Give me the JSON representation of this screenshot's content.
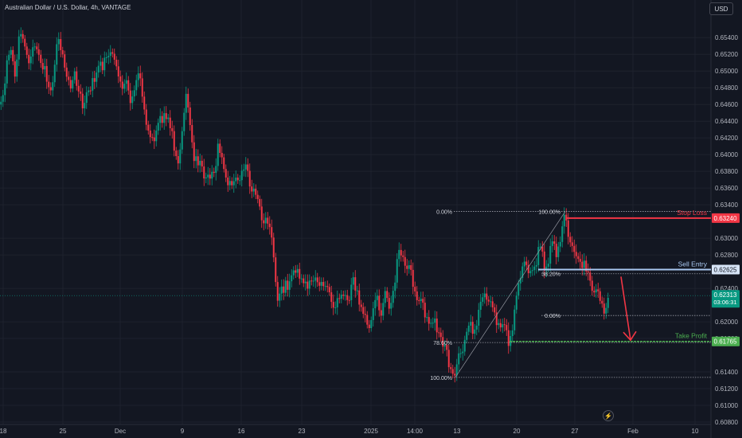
{
  "header": {
    "title": "Australian Dollar / U.S. Dollar, 4h, VANTAGE",
    "currency_button": "USD"
  },
  "colors": {
    "up": "#089981",
    "down": "#f23645",
    "bg": "#131722",
    "grid": "#1e222d",
    "fib": "#9598a1",
    "stop": "#f23645",
    "entry": "#5d9cec",
    "tp": "#4caf50"
  },
  "chart_data": {
    "type": "line",
    "symbol": "AUDUSD",
    "timeframe": "4h",
    "x_tick_labels": [
      "18",
      "25",
      "Dec",
      "9",
      "16",
      "23",
      "2025",
      "14:00",
      "13",
      "20",
      "27",
      "Feb",
      "10"
    ],
    "y_tick_labels": [
      "0.65400",
      "0.65200",
      "0.65000",
      "0.64800",
      "0.64600",
      "0.64400",
      "0.64200",
      "0.64000",
      "0.63800",
      "0.63600",
      "0.63400",
      "0.63000",
      "0.62800",
      "0.62400",
      "0.62000",
      "0.61800",
      "0.61400",
      "0.61200",
      "0.61000",
      "0.60800"
    ],
    "ylim": [
      0.6075,
      0.6565
    ],
    "price_path": [
      [
        0,
        0.646
      ],
      [
        5,
        0.6475
      ],
      [
        10,
        0.651
      ],
      [
        15,
        0.6525
      ],
      [
        20,
        0.65
      ],
      [
        25,
        0.6535
      ],
      [
        30,
        0.654
      ],
      [
        35,
        0.652
      ],
      [
        40,
        0.651
      ],
      [
        45,
        0.653
      ],
      [
        50,
        0.6525
      ],
      [
        55,
        0.65
      ],
      [
        60,
        0.6495
      ],
      [
        65,
        0.648
      ],
      [
        70,
        0.6505
      ],
      [
        75,
        0.6545
      ],
      [
        80,
        0.652
      ],
      [
        85,
        0.649
      ],
      [
        90,
        0.648
      ],
      [
        95,
        0.65
      ],
      [
        100,
        0.647
      ],
      [
        105,
        0.646
      ],
      [
        110,
        0.648
      ],
      [
        115,
        0.6475
      ],
      [
        120,
        0.6495
      ],
      [
        125,
        0.651
      ],
      [
        130,
        0.65
      ],
      [
        135,
        0.652
      ],
      [
        140,
        0.653
      ],
      [
        145,
        0.651
      ],
      [
        150,
        0.65
      ],
      [
        155,
        0.6485
      ],
      [
        160,
        0.648
      ],
      [
        165,
        0.647
      ],
      [
        170,
        0.648
      ],
      [
        175,
        0.649
      ],
      [
        180,
        0.6475
      ],
      [
        185,
        0.644
      ],
      [
        190,
        0.6415
      ],
      [
        195,
        0.6425
      ],
      [
        200,
        0.644
      ],
      [
        205,
        0.6435
      ],
      [
        210,
        0.645
      ],
      [
        215,
        0.644
      ],
      [
        220,
        0.64
      ],
      [
        225,
        0.6395
      ],
      [
        230,
        0.643
      ],
      [
        235,
        0.6465
      ],
      [
        240,
        0.644
      ],
      [
        245,
        0.64
      ],
      [
        250,
        0.638
      ],
      [
        255,
        0.639
      ],
      [
        260,
        0.637
      ],
      [
        265,
        0.6365
      ],
      [
        270,
        0.638
      ],
      [
        275,
        0.641
      ],
      [
        280,
        0.639
      ],
      [
        285,
        0.6375
      ],
      [
        290,
        0.6365
      ],
      [
        295,
        0.636
      ],
      [
        300,
        0.637
      ],
      [
        305,
        0.6375
      ],
      [
        310,
        0.638
      ],
      [
        315,
        0.637
      ],
      [
        320,
        0.6355
      ],
      [
        325,
        0.6345
      ],
      [
        330,
        0.633
      ],
      [
        335,
        0.632
      ],
      [
        340,
        0.6305
      ],
      [
        345,
        0.628
      ],
      [
        350,
        0.622
      ],
      [
        355,
        0.6235
      ],
      [
        360,
        0.625
      ],
      [
        365,
        0.624
      ],
      [
        370,
        0.626
      ],
      [
        375,
        0.6265
      ],
      [
        380,
        0.625
      ],
      [
        385,
        0.624
      ],
      [
        390,
        0.6255
      ],
      [
        395,
        0.6245
      ],
      [
        400,
        0.6245
      ],
      [
        405,
        0.625
      ],
      [
        410,
        0.624
      ],
      [
        415,
        0.6235
      ],
      [
        420,
        0.6225
      ],
      [
        425,
        0.622
      ],
      [
        430,
        0.623
      ],
      [
        435,
        0.6235
      ],
      [
        440,
        0.6225
      ],
      [
        445,
        0.625
      ],
      [
        450,
        0.624
      ],
      [
        455,
        0.6215
      ],
      [
        460,
        0.62
      ],
      [
        465,
        0.6195
      ],
      [
        470,
        0.621
      ],
      [
        475,
        0.6225
      ],
      [
        480,
        0.6215
      ],
      [
        485,
        0.6235
      ],
      [
        490,
        0.622
      ],
      [
        495,
        0.624
      ],
      [
        500,
        0.627
      ],
      [
        505,
        0.6285
      ],
      [
        510,
        0.6275
      ],
      [
        515,
        0.6265
      ],
      [
        520,
        0.625
      ],
      [
        525,
        0.623
      ],
      [
        530,
        0.622
      ],
      [
        535,
        0.621
      ],
      [
        540,
        0.6205
      ],
      [
        545,
        0.6195
      ],
      [
        550,
        0.6195
      ],
      [
        555,
        0.6185
      ],
      [
        560,
        0.617
      ],
      [
        565,
        0.615
      ],
      [
        570,
        0.614
      ],
      [
        575,
        0.6145
      ],
      [
        580,
        0.6165
      ],
      [
        585,
        0.618
      ],
      [
        590,
        0.6195
      ],
      [
        595,
        0.619
      ],
      [
        600,
        0.62
      ],
      [
        605,
        0.6215
      ],
      [
        610,
        0.624
      ],
      [
        615,
        0.6225
      ],
      [
        620,
        0.6215
      ],
      [
        625,
        0.6205
      ],
      [
        630,
        0.6195
      ],
      [
        635,
        0.619
      ],
      [
        640,
        0.618
      ],
      [
        645,
        0.6195
      ],
      [
        650,
        0.623
      ],
      [
        655,
        0.626
      ],
      [
        660,
        0.6275
      ],
      [
        665,
        0.6255
      ],
      [
        670,
        0.6265
      ],
      [
        675,
        0.6275
      ],
      [
        680,
        0.629
      ],
      [
        685,
        0.627
      ],
      [
        690,
        0.6275
      ],
      [
        695,
        0.629
      ],
      [
        700,
        0.6285
      ],
      [
        705,
        0.63
      ],
      [
        710,
        0.632
      ],
      [
        715,
        0.631
      ],
      [
        720,
        0.6285
      ],
      [
        725,
        0.627
      ],
      [
        730,
        0.628
      ],
      [
        735,
        0.6265
      ],
      [
        740,
        0.625
      ],
      [
        745,
        0.624
      ],
      [
        750,
        0.6235
      ],
      [
        755,
        0.6225
      ],
      [
        760,
        0.6215
      ],
      [
        765,
        0.6225
      ]
    ],
    "fib_upper": {
      "x_start": 570,
      "x_end": 893,
      "levels": [
        {
          "label": "0.00%",
          "price": 0.6332,
          "text_x": 570
        },
        {
          "label": "100.00%",
          "price": 0.6332,
          "text_x": 706
        }
      ]
    },
    "fib_lower": {
      "x_start": 570,
      "x_end": 893,
      "levels": [
        {
          "label": "78.60%",
          "price": 0.61752,
          "text_x": 570
        },
        {
          "label": "100.00%",
          "price": 0.61335,
          "text_x": 570
        }
      ]
    },
    "fib_right": {
      "x_start": 680,
      "x_end": 893,
      "levels": [
        {
          "label": "38.20%",
          "price": 0.62575,
          "text_x": 706
        },
        {
          "label": "0.00%",
          "price": 0.62075,
          "text_x": 706
        }
      ]
    },
    "trend_line": [
      [
        572,
        0.61335
      ],
      [
        710,
        0.6332
      ]
    ],
    "levels": [
      {
        "name": "Stop Loss",
        "price_label": "0.63240",
        "price": 0.6324,
        "x_start": 712,
        "color": "#f23645"
      },
      {
        "name": "Sell Entry",
        "price_label": "0.62625",
        "price": 0.62625,
        "x_start": 676,
        "color": "#a8c7f0"
      },
      {
        "name": "Take Profit",
        "price_label": "0.61765",
        "price": 0.61765,
        "x_start": 640,
        "color": "#4caf50"
      }
    ],
    "current_price": {
      "price_label": "0.62313",
      "countdown": "03:06:31",
      "price": 0.62313
    },
    "projection_arrow": [
      [
        780,
        0.6254
      ],
      [
        792,
        0.6178
      ]
    ]
  }
}
